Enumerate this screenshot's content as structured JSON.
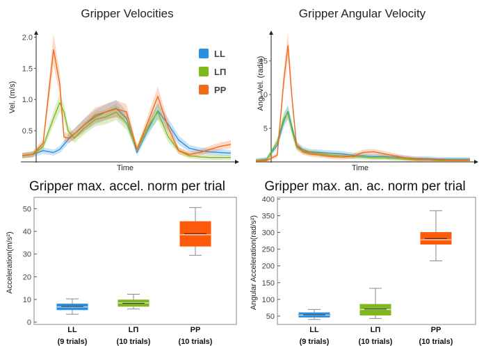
{
  "chart_data": [
    {
      "type": "line",
      "title": "Gripper Velocities",
      "xlabel": "Time",
      "ylabel": "Vel. (m/s)",
      "yticks": [
        "0.5",
        "1.0",
        "1.5",
        "2.0"
      ],
      "ylim": [
        0,
        2.05
      ],
      "legend": {
        "placement": "top-right"
      },
      "x": [
        0,
        0.05,
        0.1,
        0.15,
        0.18,
        0.2,
        0.22,
        0.25,
        0.3,
        0.35,
        0.4,
        0.45,
        0.5,
        0.55,
        0.6,
        0.65,
        0.7,
        0.75,
        0.8,
        0.85,
        0.9,
        0.95,
        1.0
      ],
      "series": [
        {
          "name": "LL",
          "color": "#2b8fe0",
          "values": [
            0.1,
            0.12,
            0.18,
            0.15,
            0.2,
            0.28,
            0.36,
            0.45,
            0.6,
            0.72,
            0.8,
            0.86,
            0.7,
            0.15,
            0.5,
            0.82,
            0.6,
            0.35,
            0.22,
            0.18,
            0.16,
            0.15,
            0.14
          ]
        },
        {
          "name": "LП",
          "color": "#7fb81e",
          "values": [
            0.1,
            0.12,
            0.25,
            0.7,
            0.95,
            0.8,
            0.5,
            0.38,
            0.55,
            0.68,
            0.72,
            0.8,
            0.62,
            0.2,
            0.55,
            0.8,
            0.4,
            0.18,
            0.1,
            0.08,
            0.07,
            0.07,
            0.07
          ]
        },
        {
          "name": "PP",
          "color": "#f26a1b",
          "values": [
            0.1,
            0.12,
            0.3,
            1.8,
            1.25,
            0.4,
            0.38,
            0.45,
            0.6,
            0.75,
            0.8,
            0.85,
            0.8,
            0.2,
            0.62,
            1.05,
            0.55,
            0.18,
            0.12,
            0.15,
            0.2,
            0.25,
            0.28
          ]
        }
      ]
    },
    {
      "type": "line",
      "title": "Gripper Angular Velocity",
      "xlabel": "Time",
      "ylabel": "Ang. Vel. (rad/s)",
      "yticks": [
        "5",
        "10",
        "15"
      ],
      "ylim": [
        0,
        19
      ],
      "x": [
        0,
        0.05,
        0.1,
        0.13,
        0.15,
        0.17,
        0.19,
        0.22,
        0.25,
        0.3,
        0.35,
        0.4,
        0.45,
        0.5,
        0.55,
        0.6,
        0.65,
        0.7,
        0.75,
        0.8,
        0.85,
        0.9,
        1.0
      ],
      "series": [
        {
          "name": "LL",
          "color": "#2b8fe0",
          "values": [
            0.2,
            0.4,
            2.5,
            6,
            7.5,
            5,
            2.5,
            1.8,
            1.5,
            1.4,
            1.3,
            1.2,
            1.0,
            0.9,
            0.8,
            0.8,
            0.7,
            0.6,
            0.5,
            0.5,
            0.4,
            0.4,
            0.4
          ]
        },
        {
          "name": "LП",
          "color": "#7fb81e",
          "values": [
            0.2,
            0.3,
            3,
            6.5,
            7.2,
            4.5,
            2.2,
            1.6,
            1.4,
            1.2,
            1.0,
            0.9,
            0.8,
            0.7,
            0.6,
            0.6,
            0.5,
            0.4,
            0.3,
            0.3,
            0.2,
            0.2,
            0.2
          ]
        },
        {
          "name": "PP",
          "color": "#f26a1b",
          "values": [
            0.1,
            0.2,
            1,
            12,
            17.3,
            9,
            2.5,
            1.5,
            1.2,
            1.0,
            0.8,
            0.7,
            0.8,
            1.4,
            1.5,
            1.2,
            0.9,
            0.6,
            0.4,
            0.3,
            0.3,
            0.2,
            0.2
          ]
        }
      ]
    },
    {
      "type": "box",
      "title": "Gripper max. accel. norm per trial",
      "ylabel": "Acceleration(m/s²)",
      "yticks": [
        "0",
        "10",
        "20",
        "30",
        "40",
        "50"
      ],
      "ylim": [
        -1,
        55
      ],
      "categories": [
        "LL",
        "LП",
        "PP"
      ],
      "sublabels": [
        "(9 trials)",
        "(10 trials)",
        "(10 trials)"
      ],
      "boxes": [
        {
          "name": "LL",
          "color": "#2b8fe0",
          "whisker_low": 3.5,
          "q1": 5.5,
          "median": 6.7,
          "mean": 6.9,
          "q3": 8.0,
          "whisker_high": 10.3
        },
        {
          "name": "LП",
          "color": "#7fb81e",
          "whisker_low": 5.8,
          "q1": 7.0,
          "median": 8.5,
          "mean": 8.3,
          "q3": 9.8,
          "whisker_high": 12.3
        },
        {
          "name": "PP",
          "color": "#ff5a0a",
          "whisker_low": 29.5,
          "q1": 33.5,
          "median": 38.5,
          "mean": 39.0,
          "q3": 44.3,
          "whisker_high": 50.5
        }
      ]
    },
    {
      "type": "box",
      "title": "Gripper max. an. ac. norm per trial",
      "ylabel": "Angular Acceleration(rad/s²)",
      "yticks": [
        "50",
        "100",
        "150",
        "200",
        "250",
        "300",
        "350",
        "400"
      ],
      "ylim": [
        25,
        405
      ],
      "categories": [
        "LL",
        "LП",
        "PP"
      ],
      "sublabels": [
        "(9 trials)",
        "(10 trials)",
        "(10 trials)"
      ],
      "boxes": [
        {
          "name": "LL",
          "color": "#2b8fe0",
          "whisker_low": 40,
          "q1": 47,
          "median": 53,
          "mean": 54,
          "q3": 60,
          "whisker_high": 70
        },
        {
          "name": "LП",
          "color": "#7fb81e",
          "whisker_low": 43,
          "q1": 53,
          "median": 70,
          "mean": 71,
          "q3": 85,
          "whisker_high": 133
        },
        {
          "name": "PP",
          "color": "#ff5a0a",
          "whisker_low": 215,
          "q1": 265,
          "median": 278,
          "mean": 282,
          "q3": 300,
          "whisker_high": 365
        }
      ]
    }
  ]
}
